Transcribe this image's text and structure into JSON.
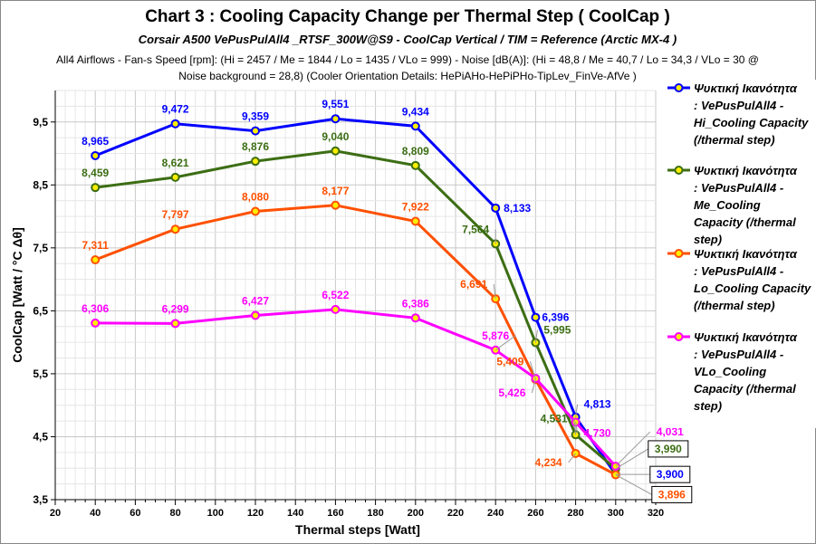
{
  "chart_data": {
    "type": "line",
    "title": "Chart 3 :  Cooling Capacity Change per Thermal Step ( CoolCap )",
    "subtitle": "Corsair A500  VePusPulAll4 _RTSF_300W@S9  - CoolCap  Vertical    /   TIM =  Reference   (Arctic MX-4 )",
    "info_line1": "All4 Airflows -  Fan-s Speed [rpm]: (Hi = 2457 / Me = 1844 / Lo = 1435 / VLo = 999) - Noise [dB(A)]: (Hi = 48,8 / Me = 40,7 / Lo = 34,3 / VLo = 30 @",
    "info_line2": "Noise background = 28,8)             (Cooler Orientation Details: HePiAHo-HePiPHo-TipLev_FinVe-AfVe )",
    "xlabel": "Thermal steps  [Watt]",
    "ylabel": "CoolCap  [Watt / °C Δθ]",
    "xlim": [
      20,
      320
    ],
    "ylim": [
      3.5,
      10.0
    ],
    "xticks": [
      20,
      40,
      60,
      80,
      100,
      120,
      140,
      160,
      180,
      200,
      220,
      240,
      260,
      280,
      300,
      320
    ],
    "yticks": [
      "3,5",
      "4,5",
      "5,5",
      "6,5",
      "7,5",
      "8,5",
      "9,5"
    ],
    "yticks_values": [
      3.5,
      4.5,
      5.5,
      6.5,
      7.5,
      8.5,
      9.5
    ],
    "grid": true,
    "legend_placement": "right",
    "decimal_separator": ",",
    "x": [
      40,
      80,
      120,
      160,
      200,
      240,
      260,
      280,
      300
    ],
    "series": [
      {
        "name": "Ψυκτική Ικανότητα : VePusPulAll4 - Hi_Cooling Capacity (/thermal step)",
        "legend_lines": [
          "Ψυκτική Ικανότητα",
          ": VePusPulAll4 -",
          "Hi_Cooling  Capacity",
          "(/thermal step)"
        ],
        "color": "#0000ff",
        "values": [
          8.965,
          9.472,
          9.359,
          9.551,
          9.434,
          8.133,
          6.396,
          4.813,
          3.9
        ]
      },
      {
        "name": "Ψυκτική Ικανότητα : VePusPulAll4 - Me_Cooling Capacity (/thermal step)",
        "legend_lines": [
          "Ψυκτική Ικανότητα",
          ": VePusPulAll4 -",
          "Me_Cooling",
          "Capacity (/thermal",
          "step)"
        ],
        "color": "#3c6e14",
        "values": [
          8.459,
          8.621,
          8.876,
          9.04,
          8.809,
          7.564,
          5.995,
          4.531,
          3.99
        ]
      },
      {
        "name": "Ψυκτική Ικανότητα : VePusPulAll4 - Lo_Cooling Capacity (/thermal step)",
        "legend_lines": [
          "Ψυκτική Ικανότητα",
          ": VePusPulAll4 -",
          "Lo_Cooling  Capacity",
          "(/thermal step)"
        ],
        "color": "#ff5000",
        "values": [
          7.311,
          7.797,
          8.08,
          8.177,
          7.922,
          6.691,
          5.409,
          4.234,
          3.896
        ]
      },
      {
        "name": "Ψυκτική Ικανότητα : VePusPulAll4 - VLo_Cooling Capacity (/thermal step)",
        "legend_lines": [
          "Ψυκτική Ικανότητα",
          ": VePusPulAll4 -",
          "VLo_Cooling",
          "Capacity (/thermal",
          "step)"
        ],
        "color": "#ff00ff",
        "values": [
          6.306,
          6.299,
          6.427,
          6.522,
          6.386,
          5.876,
          5.426,
          4.73,
          4.031
        ]
      }
    ],
    "marker_fill": "#ffee00"
  }
}
